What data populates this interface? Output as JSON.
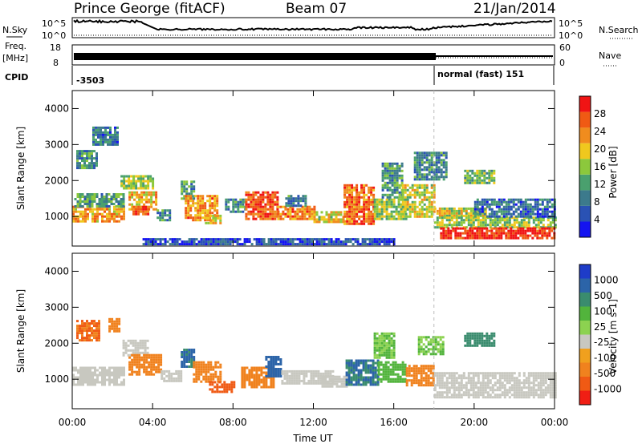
{
  "header": {
    "station": "Prince George (fitACF)",
    "beam": "Beam 07",
    "date": "21/Jan/2014"
  },
  "top_panels": {
    "nsky_label": "N.Sky",
    "nsearch_label": "N.Search",
    "noise_ticks_left": [
      "10^5",
      "10^0"
    ],
    "noise_ticks_right": [
      "10^5",
      "10^0"
    ],
    "freq_label_line1": "Freq.",
    "freq_label_line2": "[MHz]",
    "freq_ticks": [
      "18",
      "8"
    ],
    "nave_label": "Nave",
    "nave_ticks": [
      "60",
      "0"
    ],
    "cpid_label": "CPID",
    "cpid_first": "-3503",
    "cpid_second": "normal (fast) 151",
    "cpid_change_time": "18:00"
  },
  "colors": {
    "power_scale": [
      "#1414f0",
      "#2a52b4",
      "#3c7a8c",
      "#4aa06e",
      "#8cc83c",
      "#f0c81e",
      "#f08c1e",
      "#f05a14",
      "#f01414"
    ],
    "velocity_scale": [
      "#1e3cc8",
      "#2c64a8",
      "#3a8c6e",
      "#52b43c",
      "#8cd250",
      "#c8c8c0",
      "#f0a01e",
      "#f0821e",
      "#f05a14",
      "#f01e14"
    ],
    "noise_trace": "#000000"
  },
  "chart_data": [
    {
      "type": "heatmap",
      "name_panel": "power",
      "ylabel": "Slant Range [km]",
      "xlabel": "Time UT",
      "x_ticks": [
        "00:00",
        "04:00",
        "08:00",
        "12:00",
        "16:00",
        "20:00",
        "00:00"
      ],
      "xlim": [
        0,
        24
      ],
      "ylim": [
        180,
        4500
      ],
      "y_ticks": [
        1000,
        2000,
        3000,
        4000
      ],
      "colorbar_label": "Power [dB]",
      "colorbar_ticks": [
        "4",
        "8",
        "12",
        "16",
        "20",
        "24",
        "28"
      ],
      "colorbar_range": [
        0,
        30
      ],
      "patches": [
        {
          "t0": 0.0,
          "t1": 2.6,
          "r0": 850,
          "r1": 1300,
          "level": 21
        },
        {
          "t0": 0.1,
          "t1": 2.5,
          "r0": 1300,
          "r1": 1650,
          "level": 11
        },
        {
          "t0": 0.2,
          "t1": 1.2,
          "r0": 2350,
          "r1": 2850,
          "level": 10
        },
        {
          "t0": 1.0,
          "t1": 2.2,
          "r0": 3000,
          "r1": 3500,
          "level": 8
        },
        {
          "t0": 2.4,
          "t1": 4.0,
          "r0": 1750,
          "r1": 2150,
          "level": 15
        },
        {
          "t0": 2.8,
          "t1": 4.2,
          "r0": 1200,
          "r1": 1700,
          "level": 20
        },
        {
          "t0": 3.0,
          "t1": 3.8,
          "r0": 1050,
          "r1": 1300,
          "level": 26
        },
        {
          "t0": 4.2,
          "t1": 4.8,
          "r0": 900,
          "r1": 1200,
          "level": 9
        },
        {
          "t0": 5.4,
          "t1": 6.0,
          "r0": 1500,
          "r1": 2000,
          "level": 11
        },
        {
          "t0": 5.6,
          "t1": 7.2,
          "r0": 900,
          "r1": 1600,
          "level": 22
        },
        {
          "t0": 6.6,
          "t1": 7.4,
          "r0": 800,
          "r1": 1050,
          "level": 18
        },
        {
          "t0": 7.6,
          "t1": 8.6,
          "r0": 1100,
          "r1": 1500,
          "level": 9
        },
        {
          "t0": 8.6,
          "t1": 10.2,
          "r0": 950,
          "r1": 1700,
          "level": 25
        },
        {
          "t0": 10.2,
          "t1": 12.0,
          "r0": 900,
          "r1": 1300,
          "level": 23
        },
        {
          "t0": 10.6,
          "t1": 11.6,
          "r0": 1300,
          "r1": 1600,
          "level": 9
        },
        {
          "t0": 12.0,
          "t1": 13.5,
          "r0": 850,
          "r1": 1150,
          "level": 17
        },
        {
          "t0": 13.5,
          "t1": 15.0,
          "r0": 800,
          "r1": 1900,
          "level": 24
        },
        {
          "t0": 15.0,
          "t1": 16.6,
          "r0": 900,
          "r1": 1500,
          "level": 15
        },
        {
          "t0": 15.4,
          "t1": 16.4,
          "r0": 1500,
          "r1": 2500,
          "level": 11
        },
        {
          "t0": 16.4,
          "t1": 18.0,
          "r0": 1000,
          "r1": 1900,
          "level": 17
        },
        {
          "t0": 17.0,
          "t1": 18.6,
          "r0": 2000,
          "r1": 2800,
          "level": 9
        },
        {
          "t0": 18.0,
          "t1": 20.6,
          "r0": 1000,
          "r1": 1250,
          "level": 17
        },
        {
          "t0": 18.0,
          "t1": 24.0,
          "r0": 700,
          "r1": 1000,
          "level": 15
        },
        {
          "t0": 18.3,
          "t1": 24.0,
          "r0": 400,
          "r1": 700,
          "level": 28
        },
        {
          "t0": 19.5,
          "t1": 21.0,
          "r0": 1900,
          "r1": 2300,
          "level": 13
        },
        {
          "t0": 20.0,
          "t1": 24.0,
          "r0": 1000,
          "r1": 1500,
          "level": 7
        },
        {
          "t0": 3.5,
          "t1": 16.0,
          "r0": 200,
          "r1": 400,
          "level": 5
        }
      ]
    },
    {
      "type": "heatmap",
      "name_panel": "velocity",
      "ylabel": "Slant Range [km]",
      "xlabel": "Time UT",
      "x_ticks": [
        "00:00",
        "04:00",
        "08:00",
        "12:00",
        "16:00",
        "20:00",
        "00:00"
      ],
      "xlim": [
        0,
        24
      ],
      "ylim": [
        180,
        4500
      ],
      "y_ticks": [
        1000,
        2000,
        3000,
        4000
      ],
      "colorbar_label": "Velocity [m s-1]",
      "colorbar_ticks": [
        "1000",
        "500",
        "100",
        "25",
        "-25",
        "-100",
        "-500",
        "-1000"
      ],
      "patches": [
        {
          "t0": 0.0,
          "t1": 2.6,
          "r0": 850,
          "r1": 1350,
          "vel": 0
        },
        {
          "t0": 0.2,
          "t1": 1.3,
          "r0": 2100,
          "r1": 2650,
          "vel": -300
        },
        {
          "t0": 1.8,
          "t1": 2.3,
          "r0": 2350,
          "r1": 2700,
          "vel": -200
        },
        {
          "t0": 2.5,
          "t1": 3.8,
          "r0": 1650,
          "r1": 2100,
          "vel": 0
        },
        {
          "t0": 2.8,
          "t1": 4.4,
          "r0": 1100,
          "r1": 1700,
          "vel": -150
        },
        {
          "t0": 4.4,
          "t1": 5.4,
          "r0": 950,
          "r1": 1250,
          "vel": 0
        },
        {
          "t0": 5.4,
          "t1": 6.0,
          "r0": 1350,
          "r1": 1850,
          "vel": 300
        },
        {
          "t0": 6.0,
          "t1": 7.4,
          "r0": 900,
          "r1": 1500,
          "vel": -150
        },
        {
          "t0": 6.8,
          "t1": 8.0,
          "r0": 650,
          "r1": 950,
          "vel": -350
        },
        {
          "t0": 8.4,
          "t1": 10.0,
          "r0": 800,
          "r1": 1350,
          "vel": -150
        },
        {
          "t0": 9.6,
          "t1": 10.4,
          "r0": 1100,
          "r1": 1650,
          "vel": 400
        },
        {
          "t0": 10.4,
          "t1": 13.0,
          "r0": 900,
          "r1": 1250,
          "vel": 0
        },
        {
          "t0": 12.4,
          "t1": 13.6,
          "r0": 800,
          "r1": 1100,
          "vel": 0
        },
        {
          "t0": 13.6,
          "t1": 15.2,
          "r0": 850,
          "r1": 1550,
          "vel": 300
        },
        {
          "t0": 15.2,
          "t1": 16.6,
          "r0": 900,
          "r1": 1500,
          "vel": 80
        },
        {
          "t0": 16.6,
          "t1": 18.0,
          "r0": 800,
          "r1": 1400,
          "vel": -150
        },
        {
          "t0": 17.2,
          "t1": 18.4,
          "r0": 1700,
          "r1": 2200,
          "vel": 60
        },
        {
          "t0": 18.0,
          "t1": 24.0,
          "r0": 500,
          "r1": 1200,
          "vel": 0
        },
        {
          "t0": 19.5,
          "t1": 21.0,
          "r0": 1950,
          "r1": 2300,
          "vel": 150
        },
        {
          "t0": 15.0,
          "t1": 16.0,
          "r0": 1600,
          "r1": 2300,
          "vel": 60
        }
      ]
    }
  ]
}
